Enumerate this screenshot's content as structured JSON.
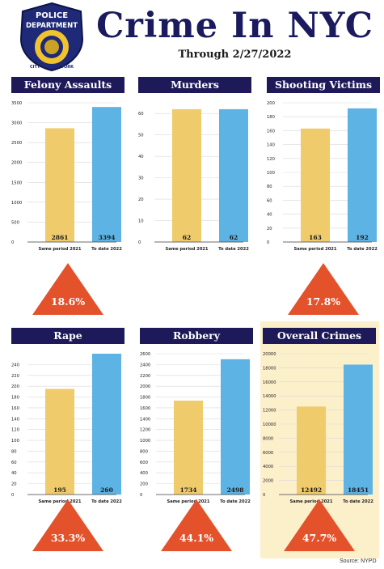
{
  "header": {
    "title": "Crime In NYC",
    "subtitle": "Through 2/27/2022",
    "badge": {
      "top_text": "POLICE",
      "mid_text": "DEPARTMENT",
      "ring_text": "CITY OF NEW YORK"
    }
  },
  "colors": {
    "bar_2021": "#f0cb6b",
    "bar_2022": "#5db3e3",
    "title_bg": "#1e1a5a",
    "arrow": "#e3522b",
    "highlight_bg": "#fcf0cb"
  },
  "chart_data": [
    {
      "type": "bar",
      "title": "Felony Assaults",
      "categories": [
        "Same period 2021",
        "To date 2022"
      ],
      "values": [
        2861,
        3394
      ],
      "ylim": [
        0,
        3500
      ],
      "yticks": [
        "0",
        "500",
        "1000",
        "1500",
        "2000",
        "2500",
        "3000",
        "3500"
      ],
      "change": "18.6%"
    },
    {
      "type": "bar",
      "title": "Murders",
      "categories": [
        "Same period 2021",
        "To date 2022"
      ],
      "values": [
        62,
        62
      ],
      "ylim": [
        0,
        65
      ],
      "yticks": [
        "0",
        "10",
        "20",
        "30",
        "40",
        "50",
        "60"
      ],
      "change": ""
    },
    {
      "type": "bar",
      "title": "Shooting Victims",
      "categories": [
        "Same period 2021",
        "To date 2022"
      ],
      "values": [
        163,
        192
      ],
      "ylim": [
        0,
        200
      ],
      "yticks": [
        "0",
        "20",
        "40",
        "60",
        "80",
        "100",
        "120",
        "140",
        "160",
        "180",
        "200"
      ],
      "change": "17.8%"
    },
    {
      "type": "bar",
      "title": "Rape",
      "categories": [
        "Same period 2021",
        "To date 2022"
      ],
      "values": [
        195,
        260
      ],
      "ylim": [
        0,
        260
      ],
      "yticks": [
        "0",
        "20",
        "40",
        "60",
        "80",
        "100",
        "120",
        "140",
        "160",
        "180",
        "200",
        "220",
        "240"
      ],
      "change": "33.3%"
    },
    {
      "type": "bar",
      "title": "Robbery",
      "categories": [
        "Same period 2021",
        "To date 2022"
      ],
      "values": [
        1734,
        2498
      ],
      "ylim": [
        0,
        2600
      ],
      "yticks": [
        "0",
        "200",
        "400",
        "600",
        "800",
        "1000",
        "1200",
        "1400",
        "1600",
        "1800",
        "2000",
        "2200",
        "2400",
        "2600"
      ],
      "change": "44.1%"
    },
    {
      "type": "bar",
      "title": "Overall Crimes",
      "categories": [
        "Same period 2021",
        "To date 2022"
      ],
      "values": [
        12492,
        18451
      ],
      "ylim": [
        0,
        20000
      ],
      "yticks": [
        "0",
        "2000",
        "4000",
        "6000",
        "8000",
        "10000",
        "12000",
        "14000",
        "16000",
        "18000",
        "20000"
      ],
      "change": "47.7%"
    }
  ],
  "footer": {
    "source": "Source: NYPD"
  }
}
